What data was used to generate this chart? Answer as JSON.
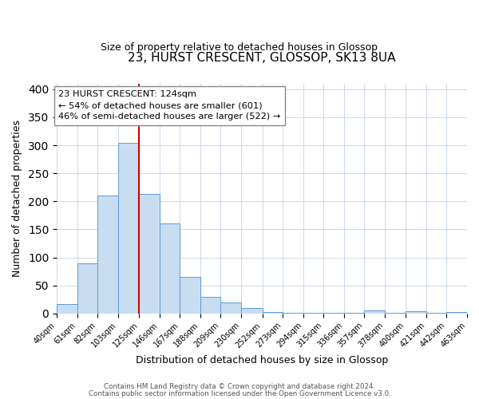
{
  "title": "23, HURST CRESCENT, GLOSSOP, SK13 8UA",
  "subtitle": "Size of property relative to detached houses in Glossop",
  "xlabel": "Distribution of detached houses by size in Glossop",
  "ylabel": "Number of detached properties",
  "bin_edges": [
    40,
    61,
    82,
    103,
    125,
    146,
    167,
    188,
    209,
    230,
    252,
    273,
    294,
    315,
    336,
    357,
    378,
    400,
    421,
    442,
    463
  ],
  "bin_heights": [
    17,
    90,
    210,
    305,
    213,
    160,
    65,
    30,
    20,
    10,
    2,
    1,
    1,
    1,
    1,
    5,
    1,
    4,
    1,
    3
  ],
  "tick_labels": [
    "40sqm",
    "61sqm",
    "82sqm",
    "103sqm",
    "125sqm",
    "146sqm",
    "167sqm",
    "188sqm",
    "209sqm",
    "230sqm",
    "252sqm",
    "273sqm",
    "294sqm",
    "315sqm",
    "336sqm",
    "357sqm",
    "378sqm",
    "400sqm",
    "421sqm",
    "442sqm",
    "463sqm"
  ],
  "bar_color": "#c9ddf0",
  "bar_edge_color": "#5b9bd5",
  "vline_x": 125,
  "vline_color": "#cc0000",
  "ylim": [
    0,
    410
  ],
  "yticks": [
    0,
    50,
    100,
    150,
    200,
    250,
    300,
    350,
    400
  ],
  "annotation_line1": "23 HURST CRESCENT: 124sqm",
  "annotation_line2": "← 54% of detached houses are smaller (601)",
  "annotation_line3": "46% of semi-detached houses are larger (522) →",
  "annotation_box_color": "#ffffff",
  "annotation_box_edge": "#888888",
  "footer_line1": "Contains HM Land Registry data © Crown copyright and database right 2024.",
  "footer_line2": "Contains public sector information licensed under the Open Government Licence v3.0.",
  "background_color": "#ffffff",
  "grid_color": "#ccd9e8"
}
